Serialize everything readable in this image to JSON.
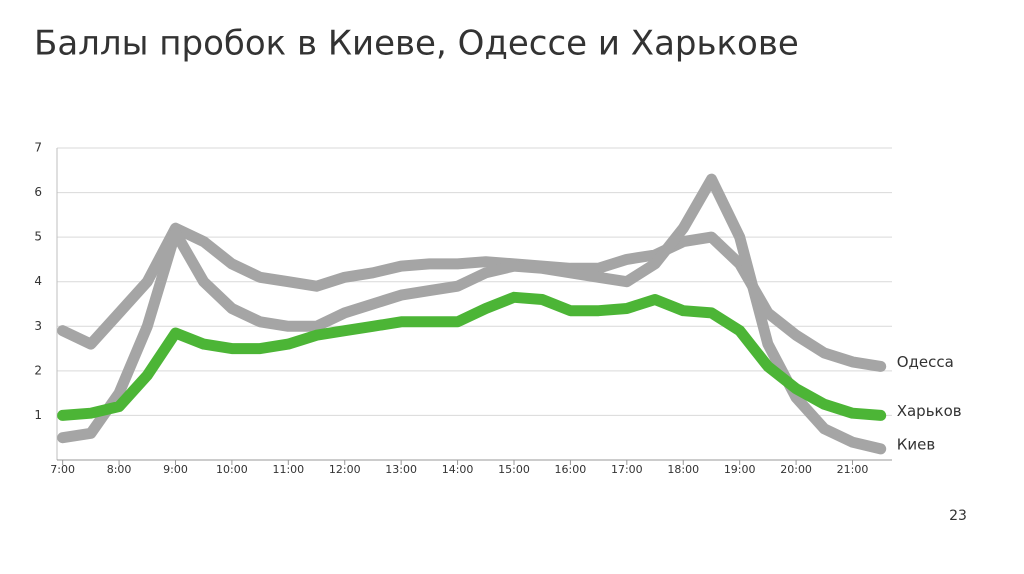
{
  "chart_data": {
    "type": "line",
    "title": "Баллы пробок в Киеве, Одессе и Харькове",
    "x": [
      7,
      7.5,
      8,
      8.5,
      9,
      9.5,
      10,
      10.5,
      11,
      11.5,
      12,
      12.5,
      13,
      13.5,
      14,
      14.5,
      15,
      15.5,
      16,
      16.5,
      17,
      17.5,
      18,
      18.5,
      19,
      19.5,
      20,
      20.5,
      21,
      21.5
    ],
    "series": [
      {
        "name": "Одесса",
        "color": "#a5a5a5",
        "values": [
          2.9,
          2.6,
          3.3,
          4.0,
          5.2,
          4.9,
          4.4,
          4.1,
          4.0,
          3.9,
          4.1,
          4.2,
          4.35,
          4.4,
          4.4,
          4.45,
          4.4,
          4.35,
          4.3,
          4.3,
          4.5,
          4.6,
          4.9,
          5.0,
          4.4,
          3.3,
          2.8,
          2.4,
          2.2,
          2.1
        ]
      },
      {
        "name": "Киев",
        "color": "#a5a5a5",
        "values": [
          0.5,
          0.6,
          1.5,
          3.0,
          5.1,
          4.0,
          3.4,
          3.1,
          3.0,
          3.0,
          3.3,
          3.5,
          3.7,
          3.8,
          3.9,
          4.2,
          4.35,
          4.3,
          4.2,
          4.1,
          4.0,
          4.4,
          5.2,
          6.3,
          5.0,
          2.6,
          1.4,
          0.7,
          0.4,
          0.25
        ]
      },
      {
        "name": "Харьков",
        "color": "#4cb536",
        "values": [
          1.0,
          1.05,
          1.2,
          1.9,
          2.85,
          2.6,
          2.5,
          2.5,
          2.6,
          2.8,
          2.9,
          3.0,
          3.1,
          3.1,
          3.1,
          3.4,
          3.65,
          3.6,
          3.35,
          3.35,
          3.4,
          3.6,
          3.35,
          3.3,
          2.9,
          2.1,
          1.6,
          1.25,
          1.05,
          1.0
        ]
      }
    ],
    "xlim": [
      6.9,
      21.7
    ],
    "xticks": [
      {
        "value": 7,
        "label": "7:00"
      },
      {
        "value": 8,
        "label": "8:00"
      },
      {
        "value": 9,
        "label": "9:00"
      },
      {
        "value": 10,
        "label": "10:00"
      },
      {
        "value": 11,
        "label": "11:00"
      },
      {
        "value": 12,
        "label": "12:00"
      },
      {
        "value": 13,
        "label": "13:00"
      },
      {
        "value": 14,
        "label": "14:00"
      },
      {
        "value": 15,
        "label": "15:00"
      },
      {
        "value": 16,
        "label": "16:00"
      },
      {
        "value": 17,
        "label": "17:00"
      },
      {
        "value": 18,
        "label": "18:00"
      },
      {
        "value": 19,
        "label": "19:00"
      },
      {
        "value": 20,
        "label": "20:00"
      },
      {
        "value": 21,
        "label": "21:00"
      }
    ],
    "ylim": [
      0,
      7
    ],
    "yticks": [
      1,
      2,
      3,
      4,
      5,
      6,
      7
    ],
    "grid": true
  },
  "slide": {
    "page_number": "23"
  }
}
